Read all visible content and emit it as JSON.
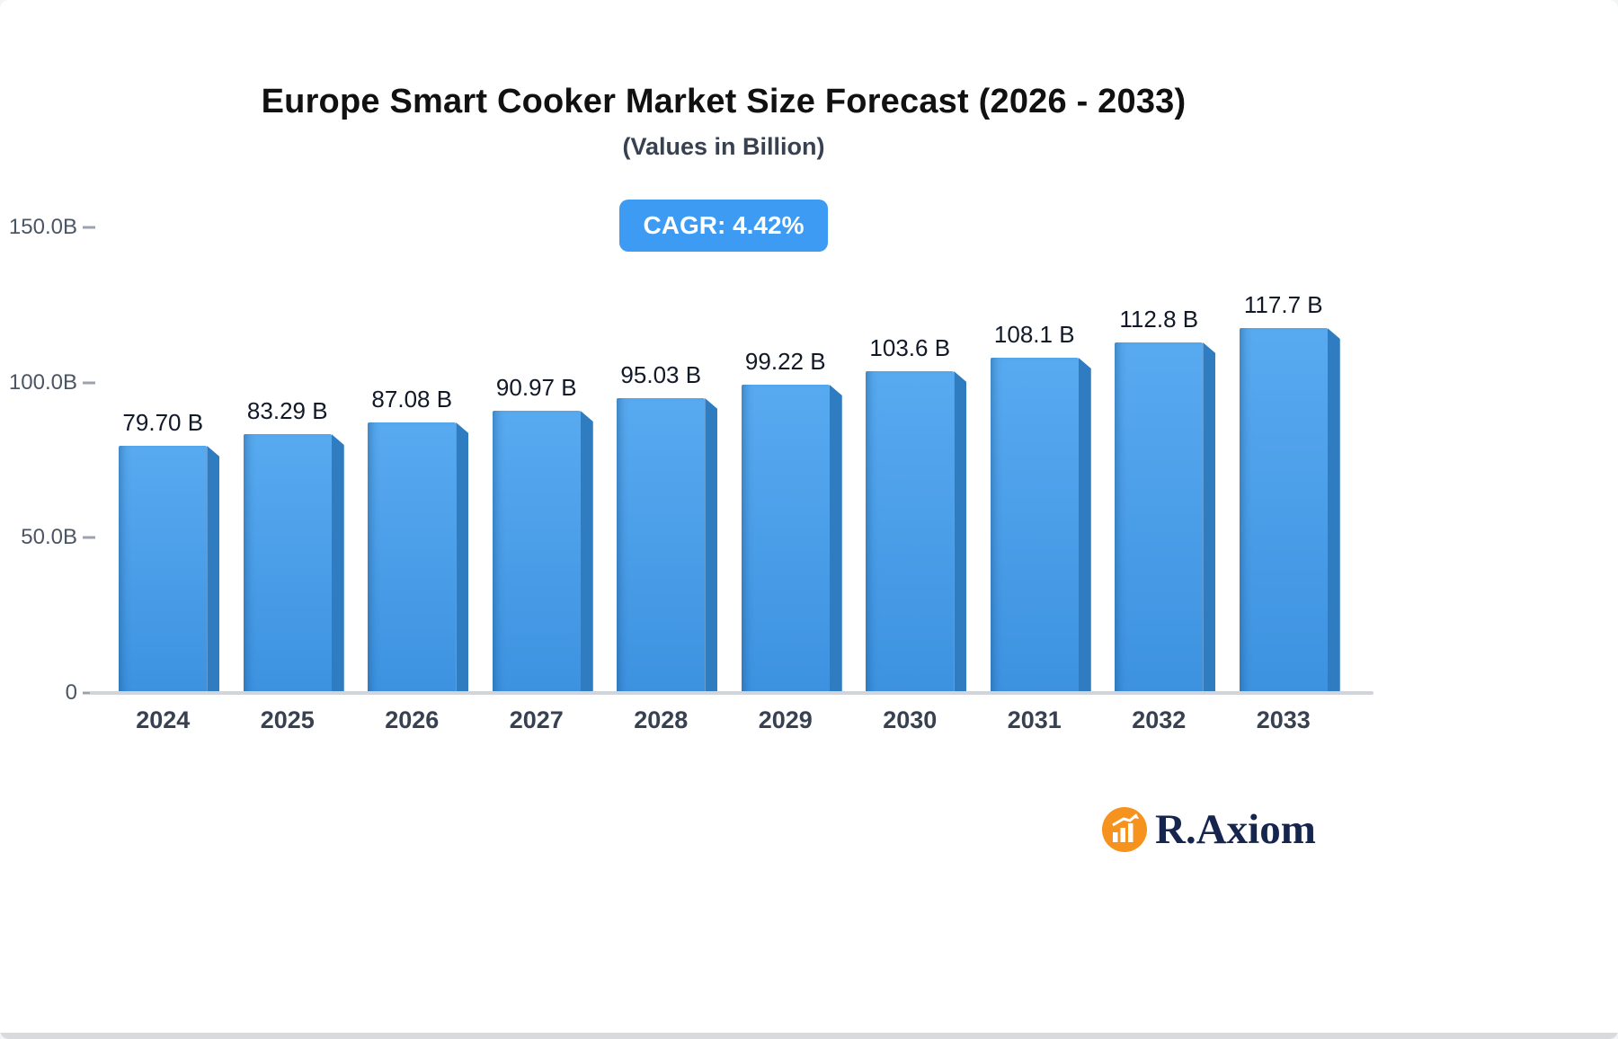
{
  "title": "Europe Smart Cooker Market Size Forecast (2026 - 2033)",
  "subtitle": "(Values in Billion)",
  "cagr_label": "CAGR: 4.42%",
  "logo": {
    "text": "R.Axiom",
    "icon": "bar-chart-logo-icon"
  },
  "colors": {
    "badge": "#3e9bf4",
    "bar_top": "#58aaf0",
    "bar_bottom": "#3d92e0",
    "bar_side": "#2f7cc0",
    "logo_orange": "#f6921e",
    "logo_navy": "#16254e"
  },
  "chart_data": {
    "type": "bar",
    "title": "Europe Smart Cooker Market Size Forecast (2026 - 2033)",
    "subtitle": "(Values in Billion)",
    "annotation": "CAGR: 4.42%",
    "categories": [
      "2024",
      "2025",
      "2026",
      "2027",
      "2028",
      "2029",
      "2030",
      "2031",
      "2032",
      "2033"
    ],
    "values": [
      79.7,
      83.29,
      87.08,
      90.97,
      95.03,
      99.22,
      103.6,
      108.1,
      112.8,
      117.7
    ],
    "value_labels": [
      "79.70 B",
      "83.29 B",
      "87.08 B",
      "90.97 B",
      "95.03 B",
      "99.22 B",
      "103.6 B",
      "108.1 B",
      "112.8 B",
      "117.7 B"
    ],
    "xlabel": "",
    "ylabel": "",
    "ylim": [
      0,
      150
    ],
    "y_ticks": [
      "150.0B",
      "100.0B",
      "50.0B",
      "0"
    ],
    "grid": false,
    "legend": false
  }
}
